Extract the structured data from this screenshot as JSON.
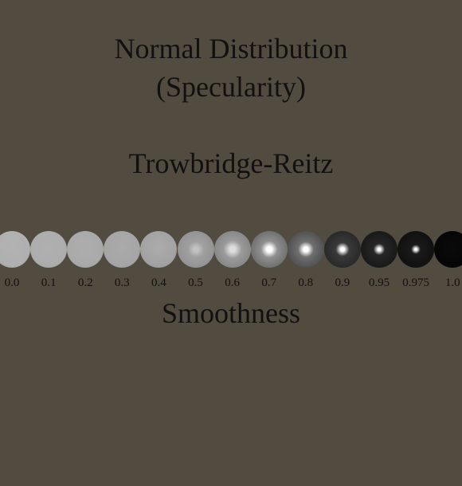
{
  "title_line_1": "Normal Distribution",
  "title_line_2": "(Specularity)",
  "subtitle": "Trowbridge-Reitz",
  "xlabel": "Smoothness",
  "colors": {
    "background": "#524b3f",
    "text": "#111111"
  },
  "spheres": [
    {
      "smoothness": "0.0",
      "base": "#b0b0b0",
      "edge": "#a5a5a5",
      "highlight": "#b2b2b2",
      "spot": 0.0
    },
    {
      "smoothness": "0.1",
      "base": "#adadad",
      "edge": "#a3a3a3",
      "highlight": "#b0b0b0",
      "spot": 0.0
    },
    {
      "smoothness": "0.2",
      "base": "#aaaaaa",
      "edge": "#9f9f9f",
      "highlight": "#adadad",
      "spot": 0.0
    },
    {
      "smoothness": "0.3",
      "base": "#a6a6a6",
      "edge": "#9a9a9a",
      "highlight": "#aaaaaa",
      "spot": 0.0
    },
    {
      "smoothness": "0.4",
      "base": "#a3a3a3",
      "edge": "#939393",
      "highlight": "#acacac",
      "spot": 0.0
    },
    {
      "smoothness": "0.5",
      "base": "#a0a0a0",
      "edge": "#8a8a8a",
      "highlight": "#c2c2c2",
      "spot": 0.2
    },
    {
      "smoothness": "0.6",
      "base": "#9a9a9a",
      "edge": "#7a7a7a",
      "highlight": "#dddddd",
      "spot": 0.25
    },
    {
      "smoothness": "0.7",
      "base": "#8f8f8f",
      "edge": "#5a5a5a",
      "highlight": "#ffffff",
      "spot": 0.22
    },
    {
      "smoothness": "0.8",
      "base": "#6f6f6f",
      "edge": "#3c3c3c",
      "highlight": "#ffffff",
      "spot": 0.2
    },
    {
      "smoothness": "0.9",
      "base": "#3a3a3a",
      "edge": "#1e1e1e",
      "highlight": "#ffffff",
      "spot": 0.16
    },
    {
      "smoothness": "0.95",
      "base": "#262626",
      "edge": "#111111",
      "highlight": "#ffffff",
      "spot": 0.12
    },
    {
      "smoothness": "0.975",
      "base": "#1a1a1a",
      "edge": "#0b0b0b",
      "highlight": "#ffffff",
      "spot": 0.08
    },
    {
      "smoothness": "1.0",
      "base": "#060606",
      "edge": "#030303",
      "highlight": "#0a0a0a",
      "spot": 0.0
    }
  ]
}
